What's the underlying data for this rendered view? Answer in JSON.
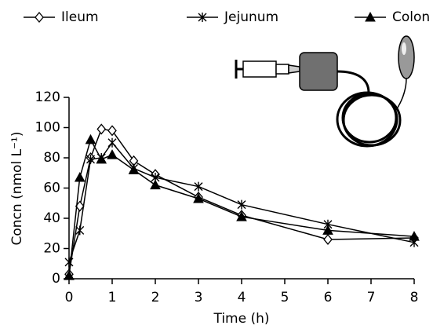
{
  "chart_data": {
    "type": "line",
    "xlabel": "Time (h)",
    "ylabel": "Concn (nmol L⁻¹)",
    "x": [
      0,
      0.25,
      0.5,
      0.75,
      1,
      1.5,
      2,
      3,
      4,
      6,
      8
    ],
    "series": [
      {
        "name": "Ileum",
        "color": "#000000",
        "marker": "diamond",
        "values": [
          3,
          48,
          80,
          99,
          98,
          78,
          69,
          54,
          42,
          26,
          27
        ]
      },
      {
        "name": "Jejunum",
        "color": "#000000",
        "marker": "asterisk",
        "values": [
          11,
          32,
          79,
          80,
          90,
          73,
          67,
          61,
          49,
          36,
          24
        ]
      },
      {
        "name": "Colon",
        "color": "#000000",
        "marker": "triangle",
        "values": [
          2,
          67,
          92,
          79,
          82,
          72,
          62,
          53,
          41,
          32,
          28
        ]
      }
    ],
    "xlim": [
      0,
      8
    ],
    "xticks": [
      0,
      1,
      2,
      3,
      4,
      5,
      6,
      7,
      8
    ],
    "ylim": [
      0,
      120
    ],
    "yticks": [
      0,
      20,
      40,
      60,
      80,
      100,
      120
    ],
    "legend": "top",
    "grid": false
  }
}
